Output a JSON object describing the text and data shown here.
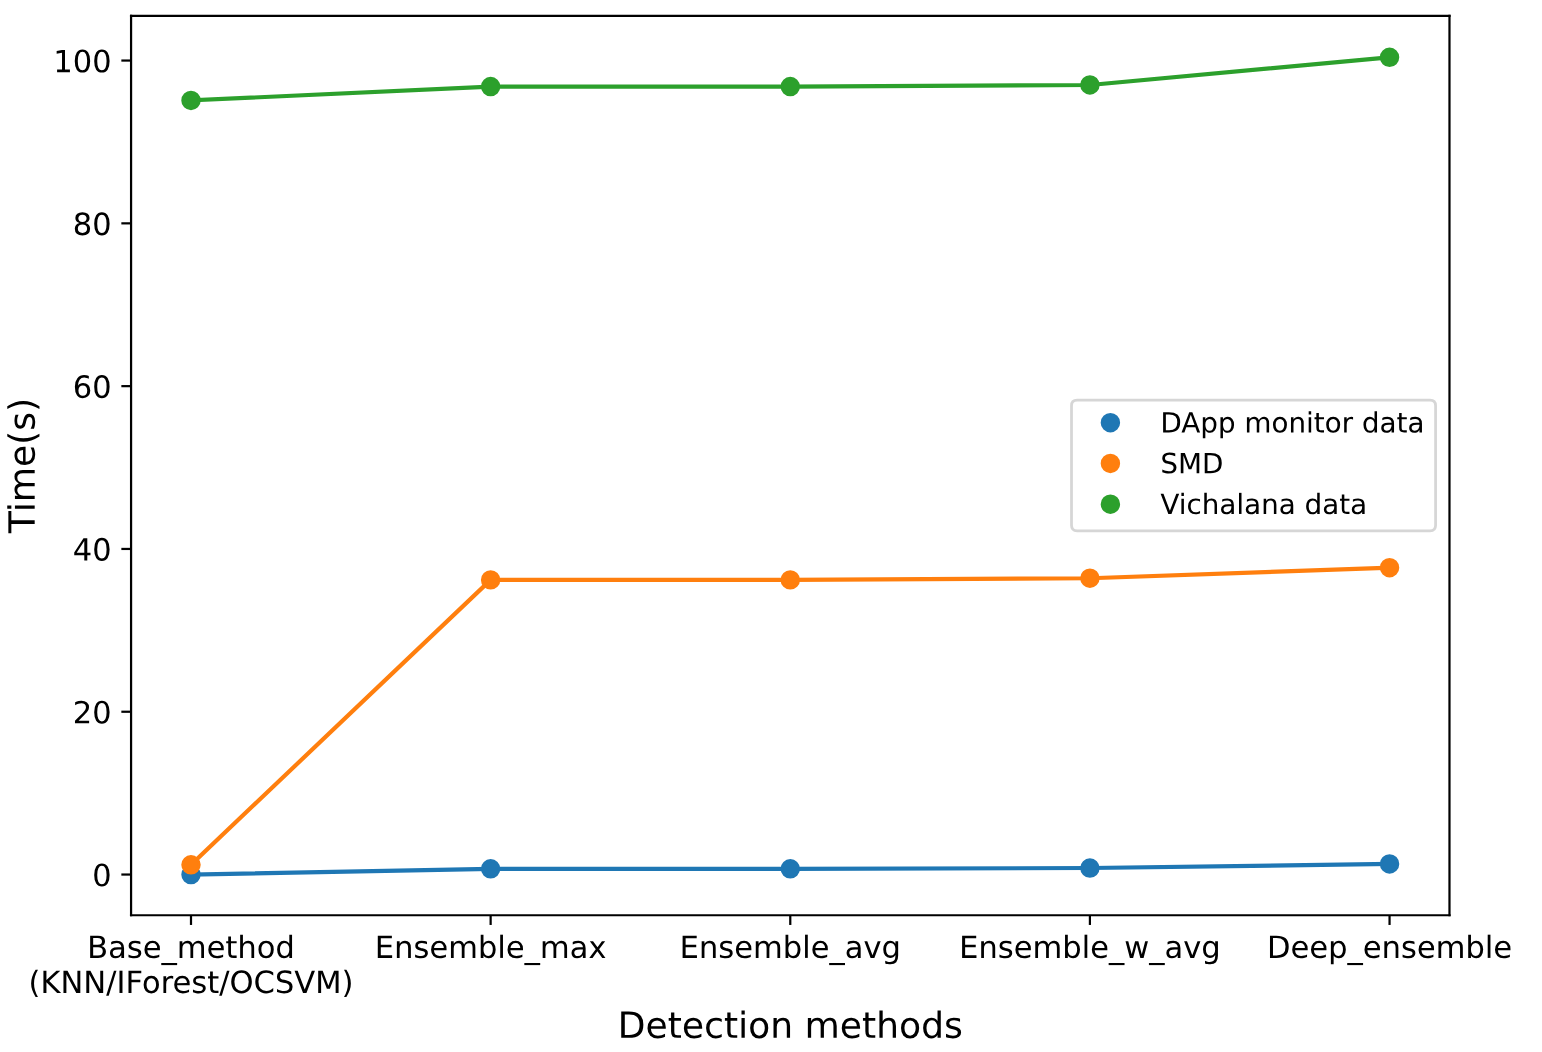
{
  "chart_data": {
    "type": "line",
    "xlabel": "Detection methods",
    "ylabel": "Time(s)",
    "categories": [
      "Base_method\n(KNN/IForest/OCSVM)",
      "Ensemble_max",
      "Ensemble_avg",
      "Ensemble_w_avg",
      "Deep_ensemble"
    ],
    "series": [
      {
        "name": "DApp monitor data",
        "color": "#1f77b4",
        "values": [
          0.0,
          0.7,
          0.7,
          0.8,
          1.3
        ]
      },
      {
        "name": "SMD",
        "color": "#ff7f0e",
        "values": [
          1.2,
          36.2,
          36.2,
          36.4,
          37.7
        ]
      },
      {
        "name": "Vichalana data",
        "color": "#2ca02c",
        "values": [
          95.1,
          96.8,
          96.8,
          97.0,
          100.4
        ]
      }
    ],
    "ylim": [
      -5,
      105.5
    ],
    "yticks": [
      0,
      20,
      40,
      60,
      80,
      100
    ],
    "marker": "circle",
    "line_style": "solid",
    "legend": "center right",
    "grid": false
  }
}
